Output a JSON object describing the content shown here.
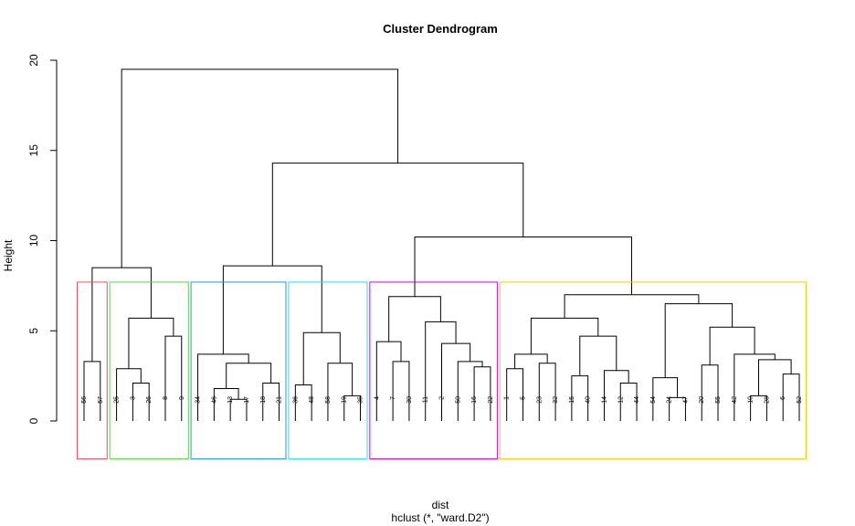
{
  "chart_data": {
    "type": "dendrogram",
    "title": "Cluster Dendrogram",
    "ylabel": "Height",
    "xlabel": "dist",
    "subtitle": "hclust (*, \"ward.D2\")",
    "ylim": [
      0,
      20
    ],
    "yticks": [
      0,
      5,
      10,
      15,
      20
    ],
    "leaf_order": [
      "56",
      "57",
      "25",
      "3",
      "26",
      "8",
      "9",
      "34",
      "46",
      "13",
      "17",
      "18",
      "21",
      "36",
      "48",
      "58",
      "19",
      "35",
      "4",
      "7",
      "30",
      "11",
      "2",
      "50",
      "16",
      "22",
      "1",
      "5",
      "23",
      "32",
      "15",
      "40",
      "14",
      "12",
      "44",
      "54",
      "24",
      "47",
      "20",
      "55",
      "42",
      "10",
      "28",
      "6",
      "52"
    ],
    "merges": [
      {
        "id": "m_56_57",
        "children": [
          "56",
          "57"
        ],
        "height": 3.3
      },
      {
        "id": "m_3_26",
        "children": [
          "3",
          "26"
        ],
        "height": 2.1
      },
      {
        "id": "m_25_3_26",
        "children": [
          "25",
          "m_3_26"
        ],
        "height": 2.9
      },
      {
        "id": "m_8_9",
        "children": [
          "8",
          "9"
        ],
        "height": 4.7
      },
      {
        "id": "m_green",
        "children": [
          "m_25_3_26",
          "m_8_9"
        ],
        "height": 5.7
      },
      {
        "id": "m_red_green",
        "children": [
          "m_56_57",
          "m_green"
        ],
        "height": 8.5
      },
      {
        "id": "m_13_17",
        "children": [
          "13",
          "17"
        ],
        "height": 1.2
      },
      {
        "id": "m_46_13_17",
        "children": [
          "46",
          "m_13_17"
        ],
        "height": 1.8
      },
      {
        "id": "m_18_21",
        "children": [
          "18",
          "21"
        ],
        "height": 2.1
      },
      {
        "id": "m_46_21",
        "children": [
          "m_46_13_17",
          "m_18_21"
        ],
        "height": 3.2
      },
      {
        "id": "m_blue",
        "children": [
          "34",
          "m_46_21"
        ],
        "height": 3.7
      },
      {
        "id": "m_36_48",
        "children": [
          "36",
          "48"
        ],
        "height": 2.0
      },
      {
        "id": "m_19_35",
        "children": [
          "19",
          "35"
        ],
        "height": 1.4
      },
      {
        "id": "m_58_19_35",
        "children": [
          "58",
          "m_19_35"
        ],
        "height": 3.2
      },
      {
        "id": "m_cyan",
        "children": [
          "m_36_48",
          "m_58_19_35"
        ],
        "height": 4.9
      },
      {
        "id": "m_blue_cyan",
        "children": [
          "m_blue",
          "m_cyan"
        ],
        "height": 8.6
      },
      {
        "id": "m_7_30",
        "children": [
          "7",
          "30"
        ],
        "height": 3.3
      },
      {
        "id": "m_4_7_30",
        "children": [
          "4",
          "m_7_30"
        ],
        "height": 4.4
      },
      {
        "id": "m_16_22",
        "children": [
          "16",
          "22"
        ],
        "height": 3.0
      },
      {
        "id": "m_50_16_22",
        "children": [
          "50",
          "m_16_22"
        ],
        "height": 3.3
      },
      {
        "id": "m_2_50",
        "children": [
          "2",
          "m_50_16_22"
        ],
        "height": 4.3
      },
      {
        "id": "m_11_2",
        "children": [
          "11",
          "m_2_50"
        ],
        "height": 5.5
      },
      {
        "id": "m_magenta",
        "children": [
          "m_4_7_30",
          "m_11_2"
        ],
        "height": 6.9
      },
      {
        "id": "m_1_5",
        "children": [
          "1",
          "5"
        ],
        "height": 2.9
      },
      {
        "id": "m_23_32",
        "children": [
          "23",
          "32"
        ],
        "height": 3.2
      },
      {
        "id": "m_1_32",
        "children": [
          "m_1_5",
          "m_23_32"
        ],
        "height": 3.7
      },
      {
        "id": "m_15_40",
        "children": [
          "15",
          "40"
        ],
        "height": 2.5
      },
      {
        "id": "m_12_44",
        "children": [
          "12",
          "44"
        ],
        "height": 2.1
      },
      {
        "id": "m_14_12_44",
        "children": [
          "14",
          "m_12_44"
        ],
        "height": 2.8
      },
      {
        "id": "m_15_44",
        "children": [
          "m_15_40",
          "m_14_12_44"
        ],
        "height": 4.7
      },
      {
        "id": "m_1_44",
        "children": [
          "m_1_32",
          "m_15_44"
        ],
        "height": 5.7
      },
      {
        "id": "m_24_47",
        "children": [
          "24",
          "47"
        ],
        "height": 1.3
      },
      {
        "id": "m_54_24_47",
        "children": [
          "54",
          "m_24_47"
        ],
        "height": 2.4
      },
      {
        "id": "m_20_55",
        "children": [
          "20",
          "55"
        ],
        "height": 3.1
      },
      {
        "id": "m_10_28",
        "children": [
          "10",
          "28"
        ],
        "height": 1.4
      },
      {
        "id": "m_6_52",
        "children": [
          "6",
          "52"
        ],
        "height": 2.6
      },
      {
        "id": "m_10_52",
        "children": [
          "m_10_28",
          "m_6_52"
        ],
        "height": 3.4
      },
      {
        "id": "m_42_10_52",
        "children": [
          "42",
          "m_10_52"
        ],
        "height": 3.7
      },
      {
        "id": "m_20_52",
        "children": [
          "m_20_55",
          "m_42_10_52"
        ],
        "height": 5.2
      },
      {
        "id": "m_54_52",
        "children": [
          "m_54_24_47",
          "m_20_52"
        ],
        "height": 6.5
      },
      {
        "id": "m_orange",
        "children": [
          "m_1_44",
          "m_54_52"
        ],
        "height": 7.0
      },
      {
        "id": "m_magenta_orange",
        "children": [
          "m_magenta",
          "m_orange"
        ],
        "height": 10.2
      },
      {
        "id": "m_right",
        "children": [
          "m_blue_cyan",
          "m_magenta_orange"
        ],
        "height": 14.3
      },
      {
        "id": "m_root",
        "children": [
          "m_red_green",
          "m_right"
        ],
        "height": 19.5
      }
    ],
    "cluster_boxes": [
      {
        "from": "56",
        "to": "57",
        "color": "#DF536B"
      },
      {
        "from": "25",
        "to": "9",
        "color": "#61D04F"
      },
      {
        "from": "34",
        "to": "21",
        "color": "#2297E6"
      },
      {
        "from": "36",
        "to": "35",
        "color": "#28E2E5"
      },
      {
        "from": "4",
        "to": "22",
        "color": "#CD0BBC"
      },
      {
        "from": "1",
        "to": "52",
        "color": "#F5C710"
      }
    ],
    "box_top_height": 7.7,
    "box_bottom_height": -2.1
  }
}
